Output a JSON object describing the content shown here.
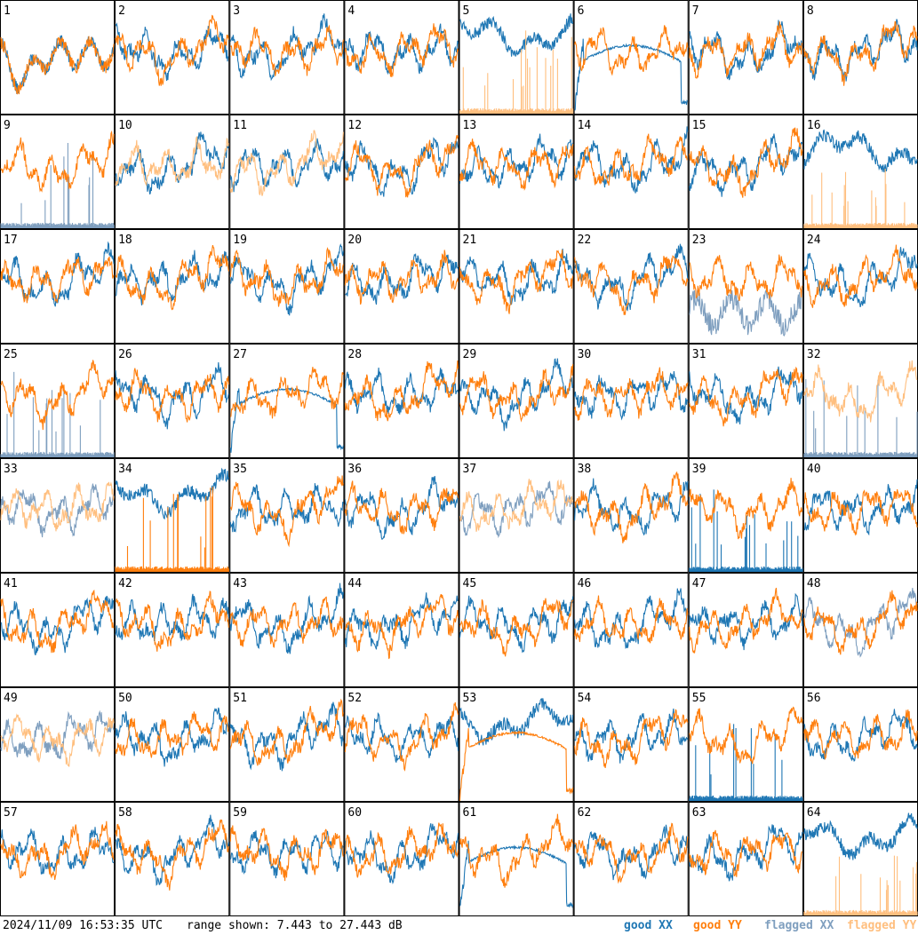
{
  "footer": {
    "timestamp": "2024/11/09 16:53:35 UTC",
    "range_text": "range shown: 7.443 to 27.443 dB"
  },
  "legend": {
    "good_xx": "good XX",
    "good_yy": "good YY",
    "flagged_xx": "flagged XX",
    "flagged_yy": "flagged YY"
  },
  "colors": {
    "good_xx": "#1f77b4",
    "good_yy": "#ff7f0e",
    "flagged_xx": "#7f9fbf",
    "flagged_yy": "#ffbf7f"
  },
  "chart_data": {
    "type": "line",
    "grid": "8x8 small multiples",
    "ylim": [
      7.443,
      27.443
    ],
    "y_unit": "dB",
    "series_names": [
      "good XX",
      "good YY",
      "flagged XX",
      "flagged YY"
    ],
    "panels": [
      {
        "label": "1",
        "xx": "good",
        "yy": "good",
        "xx_mode": "dip",
        "yy_mode": "dip"
      },
      {
        "label": "2",
        "xx": "good",
        "yy": "good"
      },
      {
        "label": "3",
        "xx": "good",
        "yy": "good"
      },
      {
        "label": "4",
        "xx": "good",
        "yy": "good"
      },
      {
        "label": "5",
        "xx": "good",
        "yy": "flagged",
        "xx_mode": "high",
        "yy_mode": "spikes"
      },
      {
        "label": "6",
        "xx": "good",
        "yy": "good",
        "xx_mode": "curve"
      },
      {
        "label": "7",
        "xx": "good",
        "yy": "good"
      },
      {
        "label": "8",
        "xx": "good",
        "yy": "good"
      },
      {
        "label": "9",
        "xx": "flagged",
        "yy": "good",
        "xx_mode": "spikes"
      },
      {
        "label": "10",
        "xx": "good",
        "yy": "flagged"
      },
      {
        "label": "11",
        "xx": "good",
        "yy": "flagged"
      },
      {
        "label": "12",
        "xx": "good",
        "yy": "good"
      },
      {
        "label": "13",
        "xx": "good",
        "yy": "good"
      },
      {
        "label": "14",
        "xx": "good",
        "yy": "good"
      },
      {
        "label": "15",
        "xx": "good",
        "yy": "good"
      },
      {
        "label": "16",
        "xx": "good",
        "yy": "flagged",
        "xx_mode": "high",
        "yy_mode": "spikes"
      },
      {
        "label": "17",
        "xx": "good",
        "yy": "good"
      },
      {
        "label": "18",
        "xx": "good",
        "yy": "good"
      },
      {
        "label": "19",
        "xx": "good",
        "yy": "good"
      },
      {
        "label": "20",
        "xx": "good",
        "yy": "good"
      },
      {
        "label": "21",
        "xx": "good",
        "yy": "good"
      },
      {
        "label": "22",
        "xx": "good",
        "yy": "good"
      },
      {
        "label": "23",
        "xx": "flagged",
        "yy": "good",
        "xx_mode": "low"
      },
      {
        "label": "24",
        "xx": "good",
        "yy": "good"
      },
      {
        "label": "25",
        "xx": "flagged",
        "yy": "good",
        "xx_mode": "spikes"
      },
      {
        "label": "26",
        "xx": "good",
        "yy": "good"
      },
      {
        "label": "27",
        "xx": "good",
        "yy": "good",
        "xx_mode": "curve"
      },
      {
        "label": "28",
        "xx": "good",
        "yy": "good"
      },
      {
        "label": "29",
        "xx": "good",
        "yy": "good"
      },
      {
        "label": "30",
        "xx": "good",
        "yy": "good"
      },
      {
        "label": "31",
        "xx": "good",
        "yy": "good"
      },
      {
        "label": "32",
        "xx": "flagged",
        "yy": "flagged",
        "xx_mode": "spikes"
      },
      {
        "label": "33",
        "xx": "flagged",
        "yy": "flagged"
      },
      {
        "label": "34",
        "xx": "good",
        "yy": "good",
        "xx_mode": "high",
        "yy_mode": "spikes"
      },
      {
        "label": "35",
        "xx": "good",
        "yy": "good"
      },
      {
        "label": "36",
        "xx": "good",
        "yy": "good"
      },
      {
        "label": "37",
        "xx": "flagged",
        "yy": "flagged"
      },
      {
        "label": "38",
        "xx": "good",
        "yy": "good"
      },
      {
        "label": "39",
        "xx": "good",
        "yy": "good",
        "xx_mode": "spikes"
      },
      {
        "label": "40",
        "xx": "good",
        "yy": "good"
      },
      {
        "label": "41",
        "xx": "good",
        "yy": "good"
      },
      {
        "label": "42",
        "xx": "good",
        "yy": "good"
      },
      {
        "label": "43",
        "xx": "good",
        "yy": "good"
      },
      {
        "label": "44",
        "xx": "good",
        "yy": "good"
      },
      {
        "label": "45",
        "xx": "good",
        "yy": "good"
      },
      {
        "label": "46",
        "xx": "good",
        "yy": "good"
      },
      {
        "label": "47",
        "xx": "good",
        "yy": "good"
      },
      {
        "label": "48",
        "xx": "flagged",
        "yy": "good"
      },
      {
        "label": "49",
        "xx": "flagged",
        "yy": "flagged"
      },
      {
        "label": "50",
        "xx": "good",
        "yy": "good"
      },
      {
        "label": "51",
        "xx": "good",
        "yy": "good"
      },
      {
        "label": "52",
        "xx": "good",
        "yy": "good"
      },
      {
        "label": "53",
        "xx": "good",
        "yy": "good",
        "xx_mode": "high",
        "yy_mode": "curve"
      },
      {
        "label": "54",
        "xx": "good",
        "yy": "good"
      },
      {
        "label": "55",
        "xx": "good",
        "yy": "good",
        "xx_mode": "spikes"
      },
      {
        "label": "56",
        "xx": "good",
        "yy": "good"
      },
      {
        "label": "57",
        "xx": "good",
        "yy": "good"
      },
      {
        "label": "58",
        "xx": "good",
        "yy": "good"
      },
      {
        "label": "59",
        "xx": "good",
        "yy": "good"
      },
      {
        "label": "60",
        "xx": "good",
        "yy": "good"
      },
      {
        "label": "61",
        "xx": "good",
        "yy": "good",
        "xx_mode": "curve"
      },
      {
        "label": "62",
        "xx": "good",
        "yy": "good"
      },
      {
        "label": "63",
        "xx": "good",
        "yy": "good"
      },
      {
        "label": "64",
        "xx": "good",
        "yy": "flagged",
        "xx_mode": "high",
        "yy_mode": "spikes"
      }
    ]
  }
}
